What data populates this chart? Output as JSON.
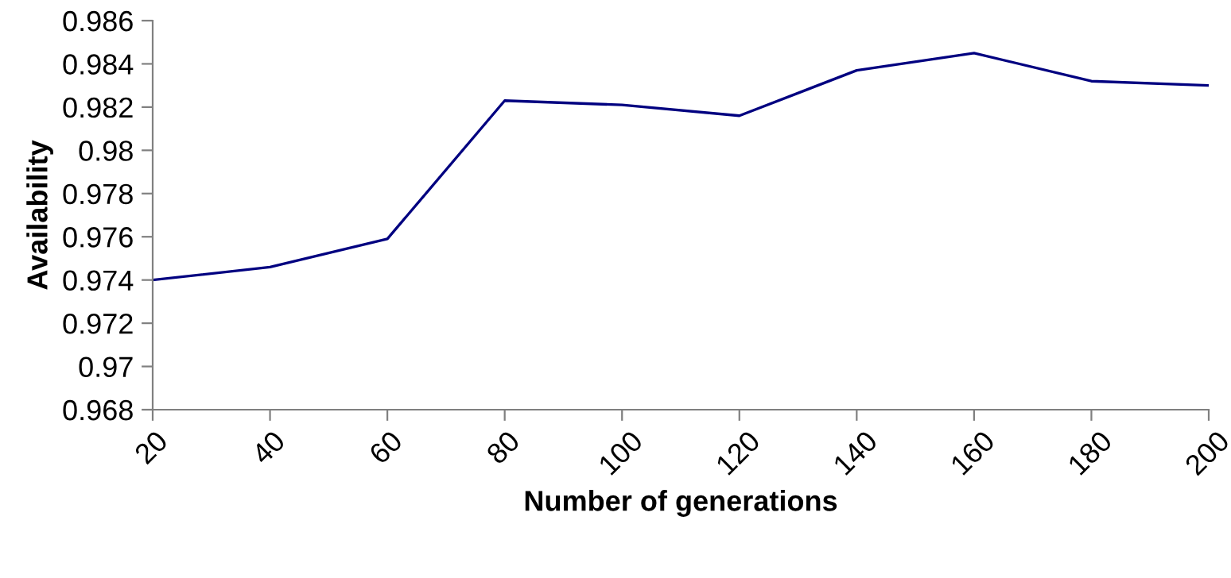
{
  "chart_data": {
    "type": "line",
    "xlabel": "Number of generations",
    "ylabel": "Availability",
    "categories": [
      "20",
      "40",
      "60",
      "80",
      "100",
      "120",
      "140",
      "160",
      "180",
      "200"
    ],
    "series": [
      {
        "color": "#000080",
        "values": [
          0.974,
          0.9746,
          0.9759,
          0.9823,
          0.9821,
          0.9816,
          0.9837,
          0.9845,
          0.9832,
          0.983
        ]
      }
    ],
    "ylim": [
      0.968,
      0.986
    ],
    "yticks": [
      {
        "value": 0.968,
        "label": "0.968"
      },
      {
        "value": 0.97,
        "label": "0.97"
      },
      {
        "value": 0.972,
        "label": "0.972"
      },
      {
        "value": 0.974,
        "label": "0.974"
      },
      {
        "value": 0.976,
        "label": "0.976"
      },
      {
        "value": 0.978,
        "label": "0.978"
      },
      {
        "value": 0.98,
        "label": "0.98"
      },
      {
        "value": 0.982,
        "label": "0.982"
      },
      {
        "value": 0.984,
        "label": "0.984"
      },
      {
        "value": 0.986,
        "label": "0.986"
      }
    ],
    "grid": false,
    "legend": false,
    "marker": "none",
    "line_style": "solid"
  }
}
